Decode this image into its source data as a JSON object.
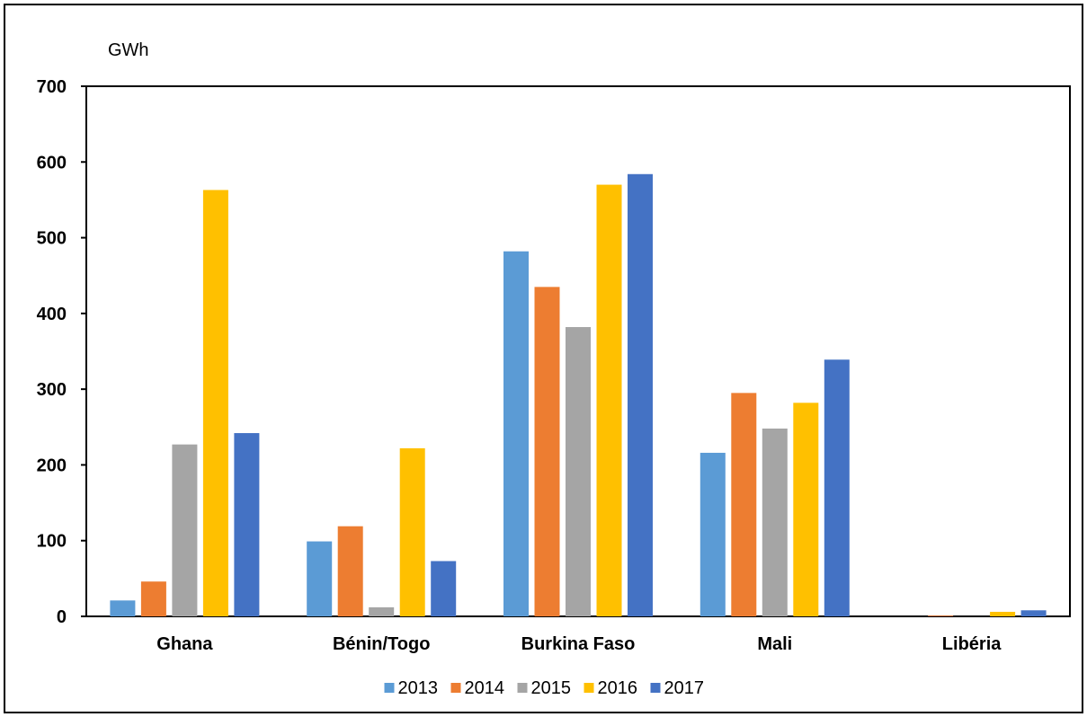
{
  "chart_data": {
    "type": "bar",
    "ylabel": "GWh",
    "ylim": [
      0,
      700
    ],
    "yticks": [
      "0",
      "100",
      "200",
      "300",
      "400",
      "500",
      "600",
      "700"
    ],
    "categories": [
      "Ghana",
      "Bénin/Togo",
      "Burkina Faso",
      "Mali",
      "Libéria"
    ],
    "series": [
      {
        "name": "2013",
        "color": "#5B9BD5",
        "values": [
          21,
          99,
          482,
          216,
          0
        ]
      },
      {
        "name": "2014",
        "color": "#ED7D31",
        "values": [
          46,
          119,
          435,
          295,
          1
        ]
      },
      {
        "name": "2015",
        "color": "#A5A5A5",
        "values": [
          227,
          12,
          382,
          248,
          0
        ]
      },
      {
        "name": "2016",
        "color": "#FFC000",
        "values": [
          563,
          222,
          570,
          282,
          6
        ]
      },
      {
        "name": "2017",
        "color": "#4472C4",
        "values": [
          242,
          73,
          584,
          339,
          8
        ]
      }
    ],
    "grid": false,
    "legend_position": "bottom"
  }
}
